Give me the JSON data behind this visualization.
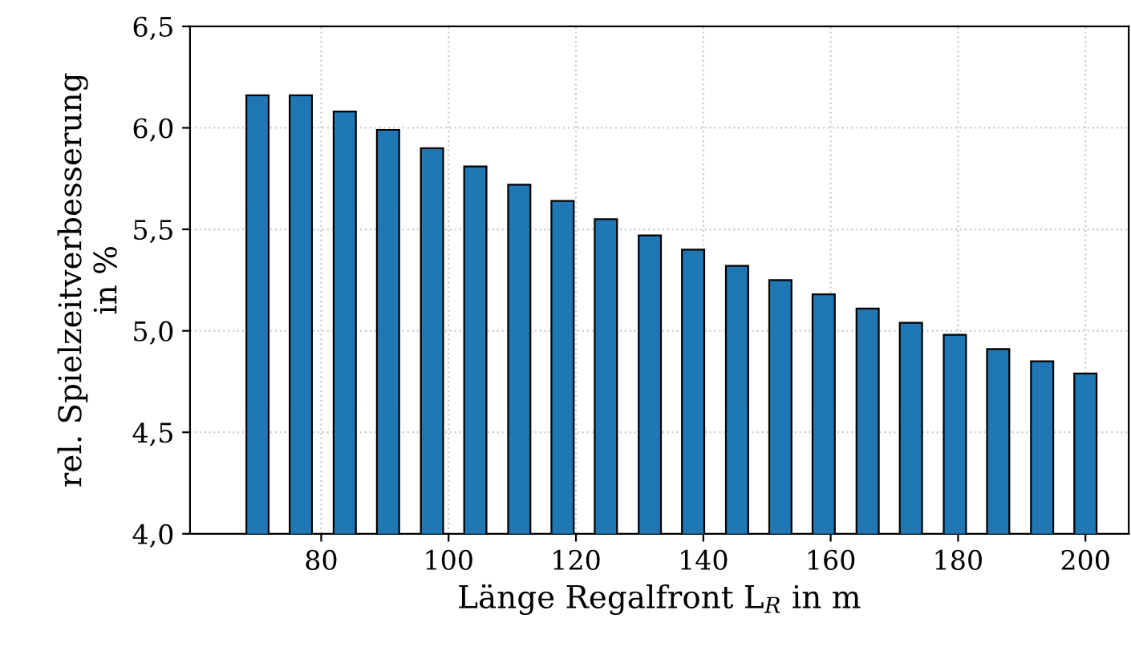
{
  "chart_data": {
    "type": "bar",
    "xlabel": "Länge Regalfront L$_{R}$ in m",
    "ylabel": "rel. Spielzeitverbesserung\nin %",
    "x": [
      70,
      76.8,
      83.7,
      90.5,
      97.4,
      104.2,
      111.1,
      117.9,
      124.7,
      131.6,
      138.4,
      145.3,
      152.1,
      158.9,
      165.8,
      172.6,
      179.5,
      186.3,
      193.2,
      200
    ],
    "series": [
      {
        "color": "#1f77b4",
        "values": [
          6.16,
          6.16,
          6.08,
          5.99,
          5.9,
          5.81,
          5.72,
          5.64,
          5.55,
          5.47,
          5.4,
          5.32,
          5.25,
          5.18,
          5.11,
          5.04,
          4.98,
          4.91,
          4.85,
          4.79
        ]
      }
    ],
    "xlim": [
      59.4,
      206.8
    ],
    "xticks": [
      80,
      100,
      120,
      140,
      160,
      180,
      200
    ],
    "ylim": [
      4.0,
      6.5
    ],
    "yticks": [
      {
        "value": 4.0,
        "label": "4,0"
      },
      {
        "value": 4.5,
        "label": "4,5"
      },
      {
        "value": 5.0,
        "label": "5,0"
      },
      {
        "value": 5.5,
        "label": "5,5"
      },
      {
        "value": 6.0,
        "label": "6,0"
      },
      {
        "value": 6.5,
        "label": "6,5"
      }
    ],
    "grid": true
  }
}
